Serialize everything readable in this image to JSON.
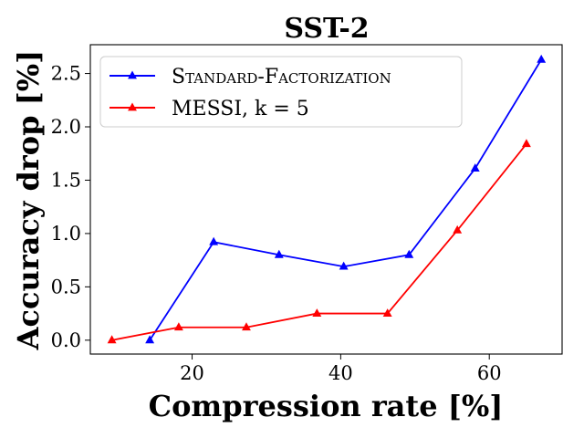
{
  "chart_data": {
    "type": "line",
    "title": "SST-2",
    "xlabel": "Compression rate [%]",
    "ylabel": "Accuracy drop [%]",
    "xlim": [
      6.3,
      69.8
    ],
    "ylim": [
      -0.13,
      2.77
    ],
    "xticks": [
      20,
      40,
      60
    ],
    "yticks": [
      0.0,
      0.5,
      1.0,
      1.5,
      2.0,
      2.5
    ],
    "xtick_labels": [
      "20",
      "40",
      "60"
    ],
    "ytick_labels": [
      "0.0",
      "0.5",
      "1.0",
      "1.5",
      "2.0",
      "2.5"
    ],
    "legend_position": "top-left",
    "series": [
      {
        "name": "Standard-Factorization",
        "legend_label": "Standard-Factorization",
        "color": "#0000ff",
        "marker": "triangle",
        "x": [
          14.3,
          22.9,
          31.7,
          40.4,
          49.2,
          58.1,
          67.0
        ],
        "y": [
          0.0,
          0.92,
          0.8,
          0.69,
          0.8,
          1.61,
          2.63
        ]
      },
      {
        "name": "MESSI, k = 5",
        "legend_label": "MESSI, k = 5",
        "color": "#ff0000",
        "marker": "triangle",
        "x": [
          9.2,
          18.2,
          27.3,
          36.8,
          46.3,
          55.7,
          65.0
        ],
        "y": [
          0.0,
          0.12,
          0.12,
          0.25,
          0.25,
          1.03,
          1.84
        ]
      }
    ]
  }
}
